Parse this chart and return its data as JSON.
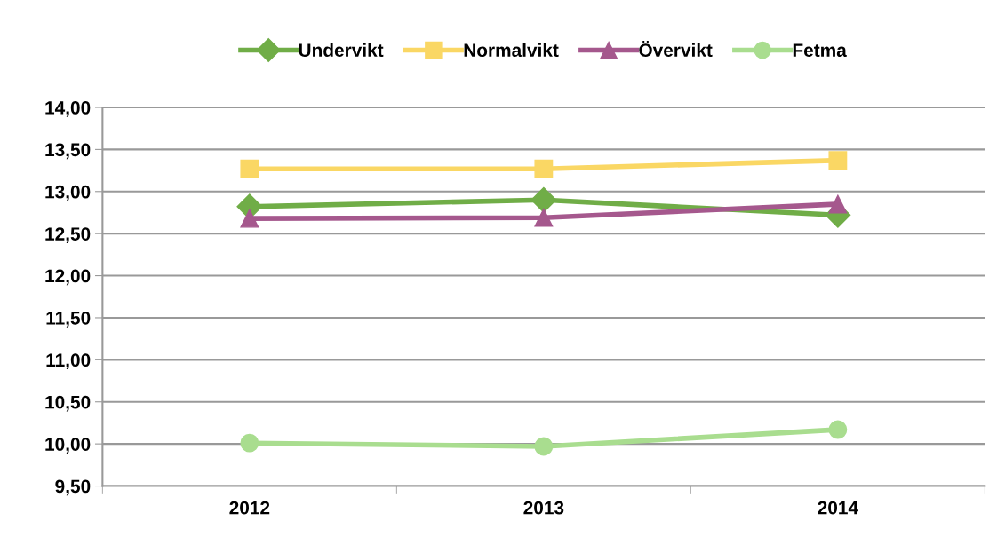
{
  "chart_data": {
    "type": "line",
    "categories": [
      "2012",
      "2013",
      "2014"
    ],
    "series": [
      {
        "name": "Undervikt",
        "color": "#70ad47",
        "values": [
          12.82,
          12.9,
          12.72
        ],
        "marker": "diamond"
      },
      {
        "name": "Normalvikt",
        "color": "#fad764",
        "values": [
          13.27,
          13.27,
          13.37
        ],
        "marker": "square"
      },
      {
        "name": "Övervikt",
        "color": "#a5588d",
        "values": [
          12.68,
          12.69,
          12.85
        ],
        "marker": "triangle"
      },
      {
        "name": "Fetma",
        "color": "#a9dd8f",
        "values": [
          10.01,
          9.97,
          10.17
        ],
        "marker": "circle"
      }
    ],
    "ylim": [
      9.5,
      14
    ],
    "yticks": [
      {
        "value": 9.5,
        "label": "9,50"
      },
      {
        "value": 10,
        "label": "10,00"
      },
      {
        "value": 10.5,
        "label": "10,50"
      },
      {
        "value": 11,
        "label": "11,00"
      },
      {
        "value": 11.5,
        "label": "11,50"
      },
      {
        "value": 12,
        "label": "12,00"
      },
      {
        "value": 12.5,
        "label": "12,50"
      },
      {
        "value": 13,
        "label": "13,00"
      },
      {
        "value": 13.5,
        "label": "13,50"
      },
      {
        "value": 14,
        "label": "14,00"
      }
    ],
    "grid": "y",
    "legend": "top",
    "line_style": "solid"
  }
}
